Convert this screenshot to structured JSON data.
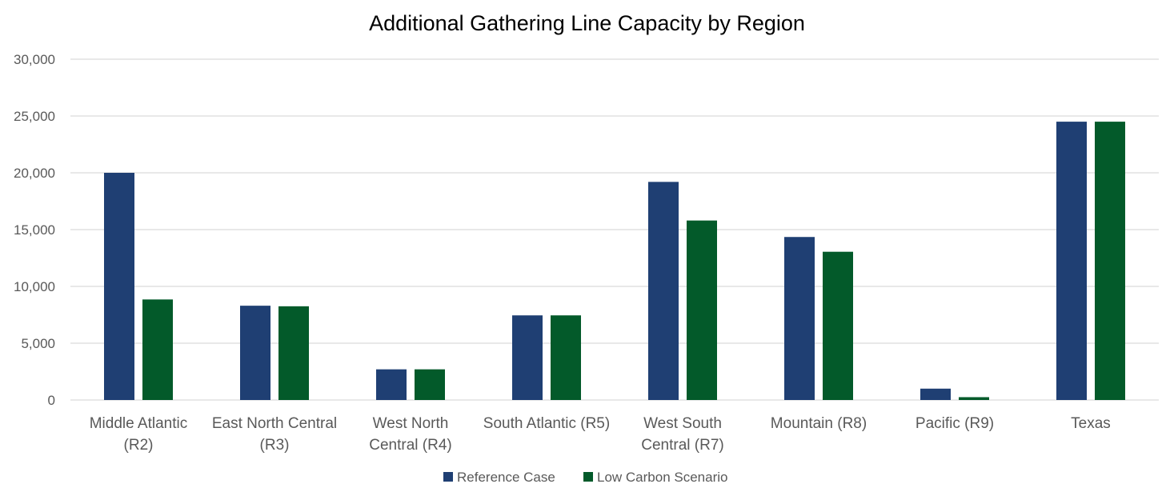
{
  "chart_data": {
    "type": "bar",
    "title": "Additional Gathering Line Capacity by Region",
    "xlabel": "",
    "ylabel": "",
    "ylim": [
      0,
      30000
    ],
    "yticks": [
      0,
      5000,
      10000,
      15000,
      20000,
      25000,
      30000
    ],
    "ytick_labels": [
      "0",
      "5,000",
      "10,000",
      "15,000",
      "20,000",
      "25,000",
      "30,000"
    ],
    "grid": true,
    "legend_position": "bottom",
    "categories": [
      [
        "Middle Atlantic",
        "(R2)"
      ],
      [
        "East North Central",
        "(R3)"
      ],
      [
        "West North",
        "Central (R4)"
      ],
      [
        "South Atlantic (R5)"
      ],
      [
        "West South",
        "Central (R7)"
      ],
      [
        "Mountain (R8)"
      ],
      [
        "Pacific (R9)"
      ],
      [
        "Texas"
      ]
    ],
    "series": [
      {
        "name": "Reference Case",
        "color": "#1f3f73",
        "values": [
          20000,
          8300,
          2700,
          7450,
          19200,
          14350,
          1000,
          24500
        ]
      },
      {
        "name": "Low Carbon Scenario",
        "color": "#035a2a",
        "values": [
          8850,
          8250,
          2700,
          7450,
          15800,
          13050,
          250,
          24500
        ]
      }
    ],
    "colors": {
      "grid": "#d9d9d9",
      "axis_text": "#595959"
    }
  }
}
